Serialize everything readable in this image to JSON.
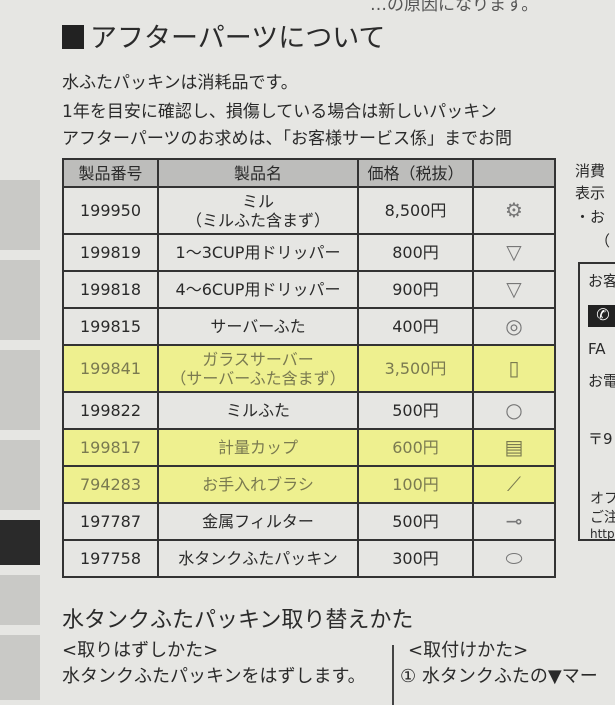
{
  "top_fragment": "…の原因になります。",
  "section": {
    "title": "アフターパーツについて",
    "paragraphs": [
      "水ふたパッキンは消耗品です。",
      "1年を目安に確認し、損傷している場合は新しいパッキン",
      "アフターパーツのお求めは、「お客様サービス係」までお問"
    ]
  },
  "table": {
    "headers": [
      "製品番号",
      "製品名",
      "価格（税抜）",
      ""
    ],
    "rows": [
      {
        "code": "199950",
        "name": "ミル\n（ミルふた含まず）",
        "price": "8,500円",
        "icon": "mill-icon",
        "highlight": false
      },
      {
        "code": "199819",
        "name": "1～3CUP用ドリッパー",
        "price": "800円",
        "icon": "dripper-icon",
        "highlight": false
      },
      {
        "code": "199818",
        "name": "4～6CUP用ドリッパー",
        "price": "900円",
        "icon": "dripper-icon",
        "highlight": false
      },
      {
        "code": "199815",
        "name": "サーバーふた",
        "price": "400円",
        "icon": "server-lid-icon",
        "highlight": false
      },
      {
        "code": "199841",
        "name": "ガラスサーバー\n（サーバーふた含まず）",
        "price": "3,500円",
        "icon": "glass-server-icon",
        "highlight": true
      },
      {
        "code": "199822",
        "name": "ミルふた",
        "price": "500円",
        "icon": "mill-lid-icon",
        "highlight": false
      },
      {
        "code": "199817",
        "name": "計量カップ",
        "price": "600円",
        "icon": "measuring-cup-icon",
        "highlight": true
      },
      {
        "code": "794283",
        "name": "お手入れブラシ",
        "price": "100円",
        "icon": "brush-icon",
        "highlight": true
      },
      {
        "code": "197787",
        "name": "金属フィルター",
        "price": "500円",
        "icon": "metal-filter-icon",
        "highlight": false
      },
      {
        "code": "197758",
        "name": "水タンクふたパッキン",
        "price": "300円",
        "icon": "gasket-icon",
        "highlight": false
      }
    ]
  },
  "right_column": [
    "消費",
    "表示",
    "・お",
    "（",
    "お客",
    "FA",
    "お電",
    "〒9",
    "オフ",
    "ご注",
    "http"
  ],
  "highlight_color": "#eef08f",
  "replace_section": {
    "title": "水タンクふたパッキン取り替えかた",
    "left_heading": "<取りはずしかた>",
    "left_text": "水タンクふたパッキンをはずします。",
    "right_heading": "<取付けかた>",
    "right_text": "① 水タンクふたの▼マー"
  }
}
